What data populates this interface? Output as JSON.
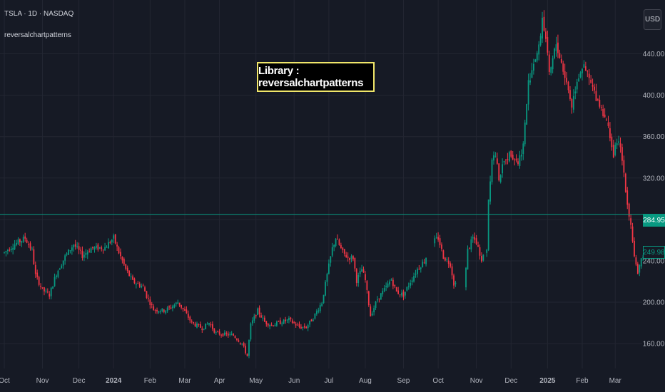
{
  "header": {
    "symbol": "TSLA · 1D · NASDAQ",
    "indicator": "reversalchartpatterns",
    "currency": "USD"
  },
  "banner": {
    "text": "Library : reversalchartpatterns"
  },
  "price_tags": {
    "last": "284.95",
    "current": "249.98"
  },
  "colors": {
    "up": "#089981",
    "down": "#f23645",
    "banner_border": "#f0e66a",
    "background": "#161a25"
  },
  "chart_data": {
    "type": "candlestick",
    "ylim": [
      136,
      492
    ],
    "y_ticks": [
      160,
      200,
      240,
      280,
      320,
      360,
      400,
      440
    ],
    "y_tick_labels": [
      "160.00",
      "200.00",
      "240.00",
      "280.00",
      "320.00",
      "360.00",
      "400.00",
      "440.00"
    ],
    "x_labels": [
      {
        "label": "Oct",
        "i": 0
      },
      {
        "label": "Nov",
        "i": 22
      },
      {
        "label": "Dec",
        "i": 43
      },
      {
        "label": "2024",
        "i": 63,
        "bold": true
      },
      {
        "label": "Feb",
        "i": 84
      },
      {
        "label": "Mar",
        "i": 104
      },
      {
        "label": "Apr",
        "i": 124
      },
      {
        "label": "May",
        "i": 145
      },
      {
        "label": "Jun",
        "i": 167
      },
      {
        "label": "Jul",
        "i": 187
      },
      {
        "label": "Aug",
        "i": 208
      },
      {
        "label": "Sep",
        "i": 230
      },
      {
        "label": "Oct",
        "i": 250
      },
      {
        "label": "Nov",
        "i": 272
      },
      {
        "label": "Dec",
        "i": 292
      },
      {
        "label": "2025",
        "i": 313,
        "bold": true
      },
      {
        "label": "Feb",
        "i": 333
      },
      {
        "label": "Mar",
        "i": 352
      }
    ],
    "horizontal_line": 284.95,
    "current_price": 249.98,
    "gaps": [
      [
        243,
        248
      ],
      [
        260,
        266
      ],
      [
        276,
        278
      ]
    ],
    "anchors": [
      [
        0,
        248
      ],
      [
        5,
        255
      ],
      [
        12,
        262
      ],
      [
        16,
        250
      ],
      [
        18,
        226
      ],
      [
        22,
        212
      ],
      [
        26,
        207
      ],
      [
        30,
        228
      ],
      [
        35,
        244
      ],
      [
        40,
        256
      ],
      [
        45,
        245
      ],
      [
        50,
        252
      ],
      [
        58,
        253
      ],
      [
        63,
        262
      ],
      [
        66,
        248
      ],
      [
        70,
        232
      ],
      [
        74,
        220
      ],
      [
        80,
        215
      ],
      [
        82,
        206
      ],
      [
        86,
        193
      ],
      [
        92,
        192
      ],
      [
        96,
        195
      ],
      [
        100,
        200
      ],
      [
        104,
        191
      ],
      [
        108,
        180
      ],
      [
        114,
        175
      ],
      [
        118,
        180
      ],
      [
        122,
        170
      ],
      [
        127,
        169
      ],
      [
        132,
        168
      ],
      [
        137,
        160
      ],
      [
        140,
        148
      ],
      [
        142,
        178
      ],
      [
        146,
        192
      ],
      [
        150,
        181
      ],
      [
        154,
        178
      ],
      [
        160,
        181
      ],
      [
        164,
        183
      ],
      [
        170,
        176
      ],
      [
        174,
        176
      ],
      [
        178,
        185
      ],
      [
        183,
        200
      ],
      [
        187,
        235
      ],
      [
        189,
        252
      ],
      [
        191,
        262
      ],
      [
        195,
        248
      ],
      [
        198,
        243
      ],
      [
        201,
        243
      ],
      [
        203,
        221
      ],
      [
        206,
        232
      ],
      [
        208,
        221
      ],
      [
        211,
        187
      ],
      [
        215,
        203
      ],
      [
        219,
        212
      ],
      [
        223,
        222
      ],
      [
        226,
        210
      ],
      [
        230,
        207
      ],
      [
        234,
        220
      ],
      [
        238,
        232
      ],
      [
        242,
        240
      ],
      [
        247,
        258
      ],
      [
        250,
        262
      ],
      [
        253,
        244
      ],
      [
        257,
        237
      ],
      [
        259,
        218
      ],
      [
        262,
        219
      ],
      [
        265,
        214
      ],
      [
        267,
        250
      ],
      [
        270,
        262
      ],
      [
        272,
        258
      ],
      [
        275,
        242
      ],
      [
        278,
        252
      ],
      [
        279,
        300
      ],
      [
        281,
        340
      ],
      [
        283,
        342
      ],
      [
        285,
        320
      ],
      [
        289,
        340
      ],
      [
        292,
        344
      ],
      [
        296,
        335
      ],
      [
        299,
        352
      ],
      [
        302,
        412
      ],
      [
        305,
        432
      ],
      [
        308,
        445
      ],
      [
        310,
        475
      ],
      [
        312,
        455
      ],
      [
        314,
        418
      ],
      [
        318,
        450
      ],
      [
        322,
        425
      ],
      [
        325,
        405
      ],
      [
        327,
        390
      ],
      [
        330,
        415
      ],
      [
        333,
        428
      ],
      [
        336,
        420
      ],
      [
        340,
        402
      ],
      [
        343,
        392
      ],
      [
        346,
        380
      ],
      [
        349,
        362
      ],
      [
        351,
        340
      ],
      [
        353,
        357
      ],
      [
        355,
        348
      ],
      [
        357,
        325
      ],
      [
        359,
        295
      ],
      [
        361,
        275
      ],
      [
        363,
        245
      ],
      [
        365,
        225
      ],
      [
        367,
        242
      ],
      [
        369,
        250
      ]
    ]
  }
}
